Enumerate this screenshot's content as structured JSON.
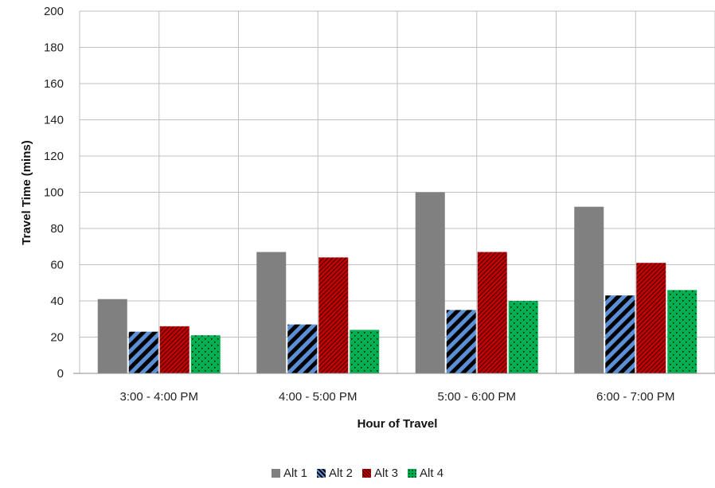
{
  "chart_data": {
    "type": "bar",
    "xlabel": "Hour of Travel",
    "ylabel": "Travel Time (mins)",
    "ylim": [
      0,
      200
    ],
    "yticks": [
      0,
      20,
      40,
      60,
      80,
      100,
      120,
      140,
      160,
      180,
      200
    ],
    "categories": [
      "3:00 - 4:00 PM",
      "4:00 - 5:00 PM",
      "5:00 - 6:00 PM",
      "6:00 - 7:00 PM"
    ],
    "series": [
      {
        "name": "Alt 1",
        "values": [
          41,
          67,
          100,
          92
        ],
        "color": "#808080",
        "pattern": "solid"
      },
      {
        "name": "Alt 2",
        "values": [
          23,
          27,
          35,
          43
        ],
        "color": "#5b8fd6",
        "pattern": "diagonal-stripes"
      },
      {
        "name": "Alt 3",
        "values": [
          26,
          64,
          67,
          61
        ],
        "color": "#c00000",
        "pattern": "fine-hatch"
      },
      {
        "name": "Alt 4",
        "values": [
          21,
          24,
          40,
          46
        ],
        "color": "#00b050",
        "pattern": "dots"
      }
    ],
    "grid": true,
    "legend_position": "bottom"
  }
}
